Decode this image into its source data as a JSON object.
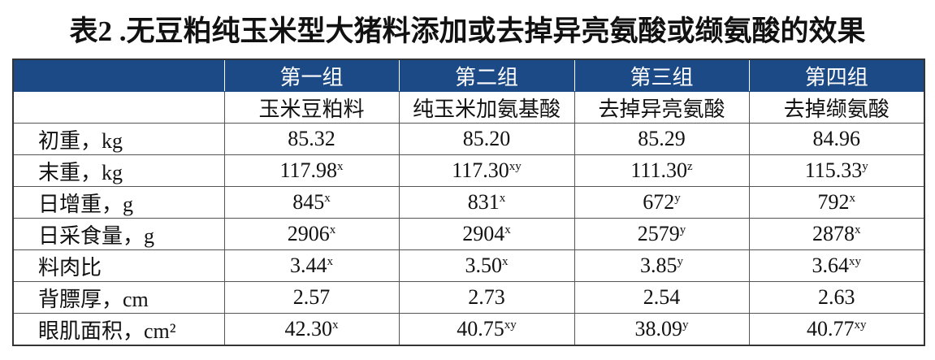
{
  "title": "表2 .无豆粕纯玉米型大猪料添加或去掉异亮氨酸或缬氨酸的效果",
  "table": {
    "groups": [
      "第一组",
      "第二组",
      "第三组",
      "第四组"
    ],
    "treatments": [
      "玉米豆粕料",
      "纯玉米加氨基酸",
      "去掉异亮氨酸",
      "去掉缬氨酸"
    ],
    "rows": [
      {
        "label": "初重，kg",
        "cells": [
          {
            "text": "85.32"
          },
          {
            "text": "85.20"
          },
          {
            "text": "85.29"
          },
          {
            "text": "84.96"
          }
        ]
      },
      {
        "label": "末重，kg",
        "cells": [
          {
            "text": "117.98",
            "sup": "x"
          },
          {
            "text": "117.30",
            "sup": "xy"
          },
          {
            "text": "111.30",
            "sup": "z"
          },
          {
            "text": "115.33",
            "sup": "y"
          }
        ]
      },
      {
        "label": "日增重，g",
        "cells": [
          {
            "text": "845",
            "sup": "x"
          },
          {
            "text": "831",
            "sup": "x"
          },
          {
            "text": "672",
            "sup": "y"
          },
          {
            "text": "792",
            "sup": "x"
          }
        ]
      },
      {
        "label": "日采食量，g",
        "cells": [
          {
            "text": "2906",
            "sup": "x"
          },
          {
            "text": "2904",
            "sup": "x"
          },
          {
            "text": "2579",
            "sup": "y"
          },
          {
            "text": "2878",
            "sup": "x"
          }
        ]
      },
      {
        "label": "料肉比",
        "cells": [
          {
            "text": "3.44",
            "sup": "x"
          },
          {
            "text": "3.50",
            "sup": "x"
          },
          {
            "text": "3.85",
            "sup": "y"
          },
          {
            "text": "3.64",
            "sup": "xy"
          }
        ]
      },
      {
        "label": "背膘厚，cm",
        "cells": [
          {
            "text": "2.57"
          },
          {
            "text": "2.73"
          },
          {
            "text": "2.54"
          },
          {
            "text": "2.63"
          }
        ]
      },
      {
        "label": "眼肌面积，cm²",
        "cells": [
          {
            "text": "42.30",
            "sup": "x"
          },
          {
            "text": "40.75",
            "sup": "xy"
          },
          {
            "text": "38.09",
            "sup": "y"
          },
          {
            "text": "40.77",
            "sup": "xy"
          }
        ]
      }
    ]
  }
}
